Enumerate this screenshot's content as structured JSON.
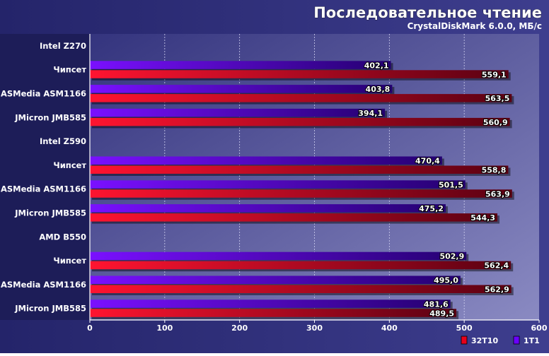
{
  "chart_data": {
    "type": "bar",
    "orientation": "horizontal",
    "title": "Последовательное чтение",
    "subtitle": "CrystalDiskMark 6.0.0, МБ/с",
    "xlim": [
      0,
      600
    ],
    "xticks": [
      0,
      100,
      200,
      300,
      400,
      500,
      600
    ],
    "grid": true,
    "legend_position": "bottom-right",
    "categories": [
      {
        "label": "Intel Z270",
        "group": true
      },
      {
        "label": "Чипсет"
      },
      {
        "label": "ASMedia ASM1166"
      },
      {
        "label": "JMicron JMB585"
      },
      {
        "label": "Intel Z590",
        "group": true
      },
      {
        "label": "Чипсет"
      },
      {
        "label": "ASMedia ASM1166"
      },
      {
        "label": "JMicron JMB585"
      },
      {
        "label": "AMD B550",
        "group": true
      },
      {
        "label": "Чипсет"
      },
      {
        "label": "ASMedia ASM1166"
      },
      {
        "label": "JMicron JMB585"
      }
    ],
    "series": [
      {
        "name": "1T1",
        "color": "#6a00ff",
        "values": [
          null,
          402.1,
          403.8,
          394.1,
          null,
          470.4,
          501.5,
          475.2,
          null,
          502.9,
          495.0,
          481.6
        ],
        "labels": [
          "",
          "402,1",
          "403,8",
          "394,1",
          "",
          "470,4",
          "501,5",
          "475,2",
          "",
          "502,9",
          "495,0",
          "481,6"
        ]
      },
      {
        "name": "32T10",
        "color": "#e8001a",
        "values": [
          null,
          559.1,
          563.5,
          560.9,
          null,
          558.8,
          563.9,
          544.3,
          null,
          562.4,
          562.9,
          489.5
        ],
        "labels": [
          "",
          "559,1",
          "563,5",
          "560,9",
          "",
          "558,8",
          "563,9",
          "544,3",
          "",
          "562,4",
          "562,9",
          "489,5"
        ]
      }
    ]
  },
  "colors": {
    "background": "#2d2d78",
    "left_panel": "#1e1e5a",
    "plot_light": "#8080bc",
    "plot_dark": "#3a3a8a",
    "text": "#ffffff"
  }
}
